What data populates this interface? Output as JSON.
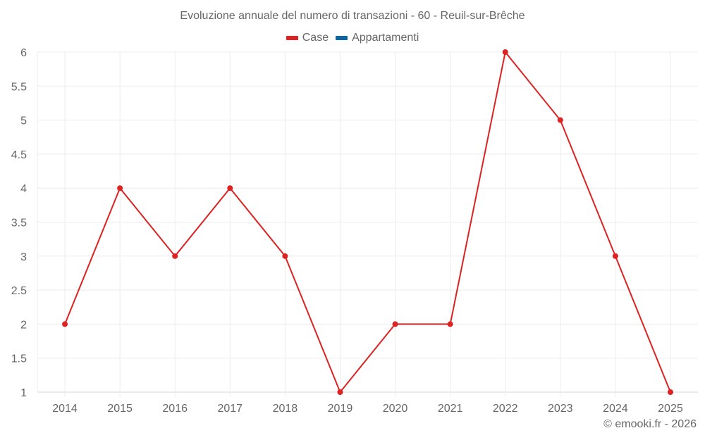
{
  "chart_data": {
    "type": "line",
    "title": "Evoluzione annuale del numero di transazioni - 60 - Reuil-sur-Brêche",
    "xlabel": "",
    "ylabel": "",
    "categories": [
      "2014",
      "2015",
      "2016",
      "2017",
      "2018",
      "2019",
      "2020",
      "2021",
      "2022",
      "2023",
      "2024",
      "2025"
    ],
    "series": [
      {
        "name": "Case",
        "color": "#dd2222",
        "values": [
          2,
          4,
          3,
          4,
          3,
          1,
          2,
          2,
          6,
          5,
          3,
          1
        ]
      },
      {
        "name": "Appartamenti",
        "color": "#0b66a3",
        "values": []
      }
    ],
    "ylim": [
      1,
      6
    ],
    "yticks": [
      "1",
      "1.5",
      "2",
      "2.5",
      "3",
      "3.5",
      "4",
      "4.5",
      "5",
      "5.5",
      "6"
    ],
    "grid": true,
    "legend_position": "top"
  },
  "legend": {
    "items": [
      {
        "label": "Case",
        "color": "#dd2222"
      },
      {
        "label": "Appartamenti",
        "color": "#0b66a3"
      }
    ]
  },
  "credit": "© emooki.fr - 2026"
}
